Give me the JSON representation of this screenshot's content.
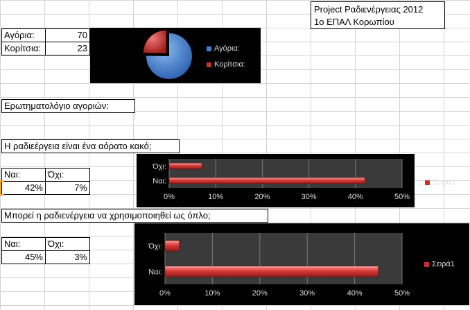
{
  "header": {
    "line1": "Project Ραδιενέργειας 2012",
    "line2": "1ο ΕΠΑΛ Κορωπίου"
  },
  "counts": {
    "boys_label": "Αγόρια:",
    "boys_value": "70",
    "girls_label": "Κορίτσια:",
    "girls_value": "23"
  },
  "section_title": "Ερωτηματολόγιο αγοριών:",
  "q1": {
    "question": "Η ραδιεέργεια είναι ένα αόρατο κακό;",
    "yes_label": "Ναι:",
    "no_label": "Όχι:",
    "yes_value": "42%",
    "no_value": "7%"
  },
  "q2": {
    "question": "Μπορεί η ραδιενέργεια να χρησιμοποιηθεί ως όπλο;",
    "yes_label": "Ναι:",
    "no_label": "Όχι:",
    "yes_value": "45%",
    "no_value": "3%"
  },
  "colors": {
    "blue": "#3f7fcf",
    "red": "#c8302e",
    "chart_bg": "#000000",
    "plot_bg": "#3a3a3a"
  },
  "chart_data": [
    {
      "type": "pie",
      "categories": [
        "Αγόρια:",
        "Κορίτσια:"
      ],
      "values": [
        70,
        23
      ],
      "legend_position": "right"
    },
    {
      "type": "bar",
      "orientation": "horizontal",
      "categories": [
        "Ναι:",
        "Όχι:"
      ],
      "series": [
        {
          "name": "Σειρά1",
          "values": [
            42,
            7
          ]
        }
      ],
      "xlim": [
        0,
        50
      ],
      "ticks": [
        "0%",
        "10%",
        "20%",
        "30%",
        "40%",
        "50%"
      ],
      "grid": true,
      "legend_position": "right"
    },
    {
      "type": "bar",
      "orientation": "horizontal",
      "categories": [
        "Ναι:",
        "Όχι:"
      ],
      "series": [
        {
          "name": "Σειρά1",
          "values": [
            45,
            3
          ]
        }
      ],
      "xlim": [
        0,
        50
      ],
      "ticks": [
        "0%",
        "10%",
        "20%",
        "30%",
        "40%",
        "50%"
      ],
      "grid": true,
      "legend_position": "right"
    }
  ]
}
